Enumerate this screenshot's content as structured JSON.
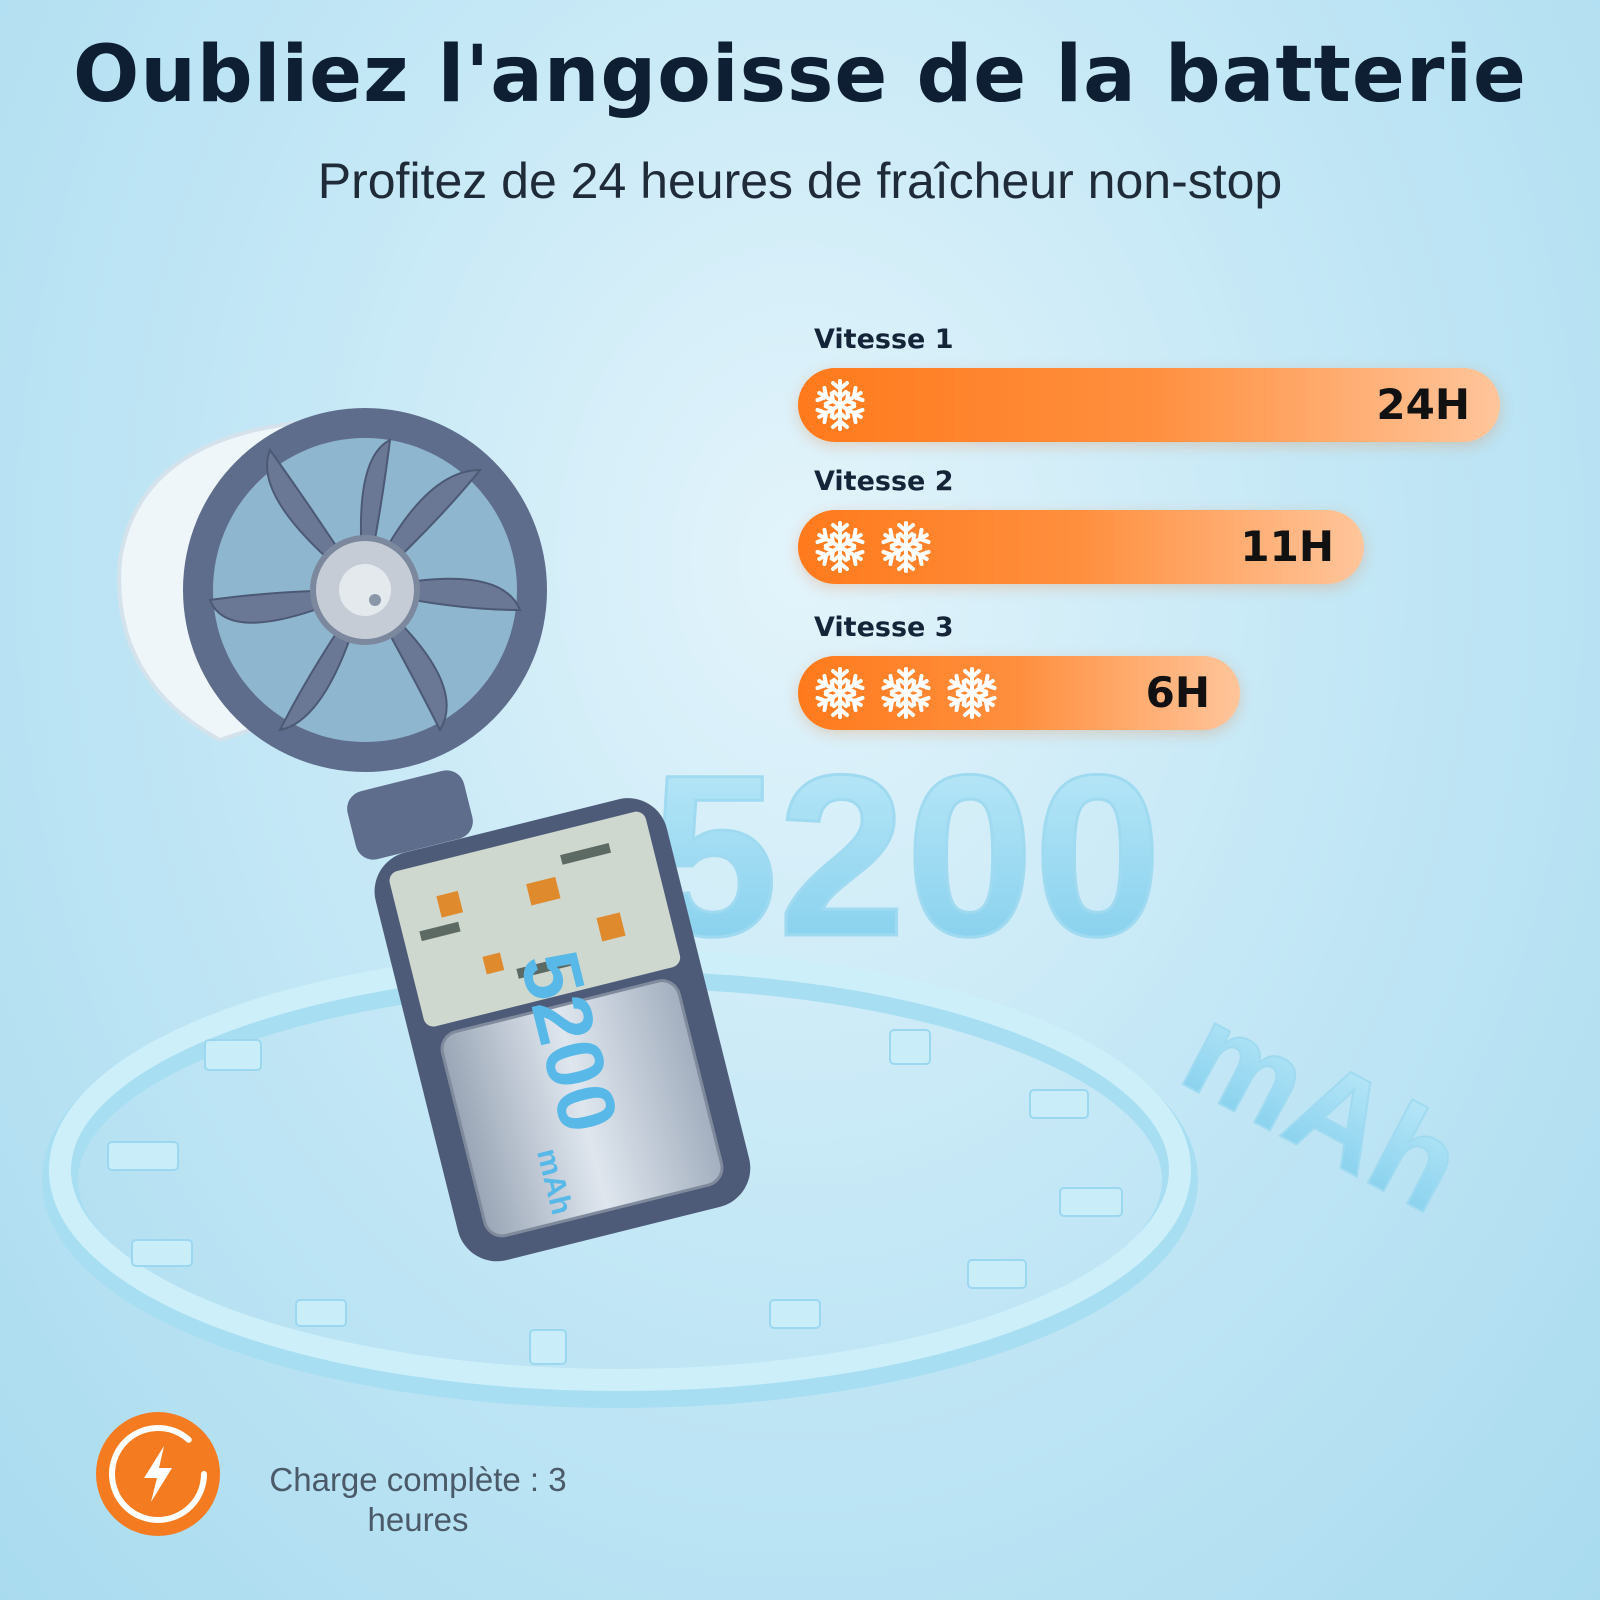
{
  "header": {
    "title": "Oubliez l'angoisse de la batterie",
    "subtitle": "Profitez de 24 heures de fraîcheur non-stop"
  },
  "speeds": [
    {
      "label": "Vitesse 1",
      "duration": "24H",
      "snowflakes": 1
    },
    {
      "label": "Vitesse 2",
      "duration": "11H",
      "snowflakes": 2
    },
    {
      "label": "Vitesse 3",
      "duration": "6H",
      "snowflakes": 3
    }
  ],
  "battery": {
    "capacity": "5200",
    "unit": "mAh",
    "big_capacity": "5200",
    "big_unit": "mAh"
  },
  "charge": {
    "text": "Charge complète : 3 heures",
    "icon": "lightning-charge-icon"
  },
  "colors": {
    "bar_orange": "#ff7a1c",
    "title_navy": "#0e1f33",
    "fan_body": "#5f6d8c",
    "background": "#c5e8f6"
  }
}
